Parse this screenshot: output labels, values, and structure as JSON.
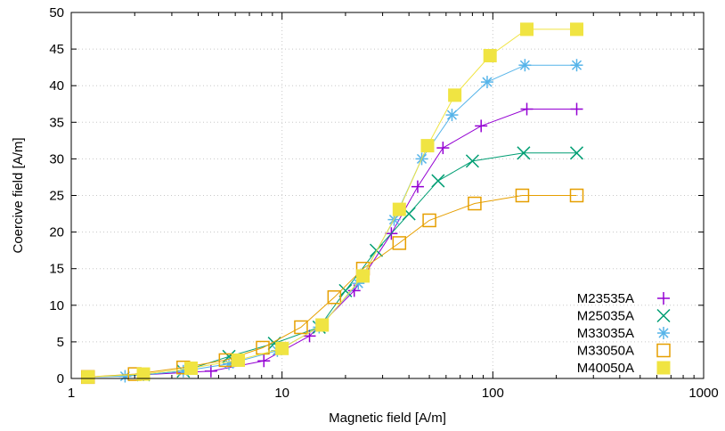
{
  "chart_data": {
    "type": "line",
    "xlabel": "Magnetic field [A/m]",
    "ylabel": "Coercive field [A/m]",
    "xscale": "log",
    "xlim": [
      1,
      1000
    ],
    "ylim": [
      0,
      50
    ],
    "xticks": [
      1,
      10,
      100,
      1000
    ],
    "xtick_labels": [
      "1",
      "10",
      "100",
      "1000"
    ],
    "yticks": [
      0,
      5,
      10,
      15,
      20,
      25,
      30,
      35,
      40,
      45,
      50
    ],
    "ytick_labels": [
      "0",
      "5",
      "10",
      "15",
      "20",
      "25",
      "30",
      "35",
      "40",
      "45",
      "50"
    ],
    "grid": true,
    "legend_position": "bottom-right",
    "series": [
      {
        "name": "M23535A",
        "color": "#9400d3",
        "marker": "plus",
        "x": [
          1.2,
          2.2,
          4.6,
          8.2,
          13.5,
          22,
          33,
          44,
          58,
          88,
          145,
          250
        ],
        "y": [
          0.2,
          0.5,
          1.0,
          2.4,
          5.8,
          12,
          19.8,
          26.2,
          31.5,
          34.5,
          36.8,
          36.8
        ]
      },
      {
        "name": "M25035A",
        "color": "#009e73",
        "marker": "cross",
        "x": [
          1.2,
          2.2,
          3.4,
          5.6,
          9.2,
          15,
          20,
          28,
          40,
          55,
          80,
          140,
          250
        ],
        "y": [
          0.2,
          0.5,
          1.0,
          3.0,
          4.8,
          7.0,
          12.0,
          17.5,
          22.5,
          27.0,
          29.7,
          30.8,
          30.8
        ]
      },
      {
        "name": "M33035A",
        "color": "#56b4e9",
        "marker": "star",
        "x": [
          1.2,
          1.8,
          2.2,
          3.4,
          5.6,
          9.5,
          15,
          23,
          34,
          46,
          64,
          94,
          142,
          250
        ],
        "y": [
          0.2,
          0.3,
          0.5,
          1.0,
          2.0,
          3.8,
          7.0,
          13.0,
          21.7,
          30.0,
          36.0,
          40.5,
          42.8,
          42.8
        ]
      },
      {
        "name": "M33050A",
        "color": "#e69f00",
        "marker": "square-open",
        "x": [
          1.2,
          2.0,
          3.4,
          5.4,
          8.1,
          12.3,
          17.7,
          24.2,
          36,
          50,
          82,
          138,
          250
        ],
        "y": [
          0.2,
          0.6,
          1.5,
          2.5,
          4.2,
          7.0,
          11.1,
          15.0,
          18.5,
          21.6,
          23.9,
          25.0,
          25.0
        ]
      },
      {
        "name": "M40050A",
        "color": "#f0e442",
        "marker": "square-filled",
        "x": [
          1.2,
          2.2,
          3.7,
          6.2,
          10,
          15.5,
          24.2,
          36,
          49,
          66,
          97,
          145,
          250
        ],
        "y": [
          0.2,
          0.6,
          1.4,
          2.5,
          4.1,
          7.3,
          14.0,
          23.1,
          31.8,
          38.7,
          44.1,
          47.7,
          47.7
        ]
      }
    ]
  }
}
